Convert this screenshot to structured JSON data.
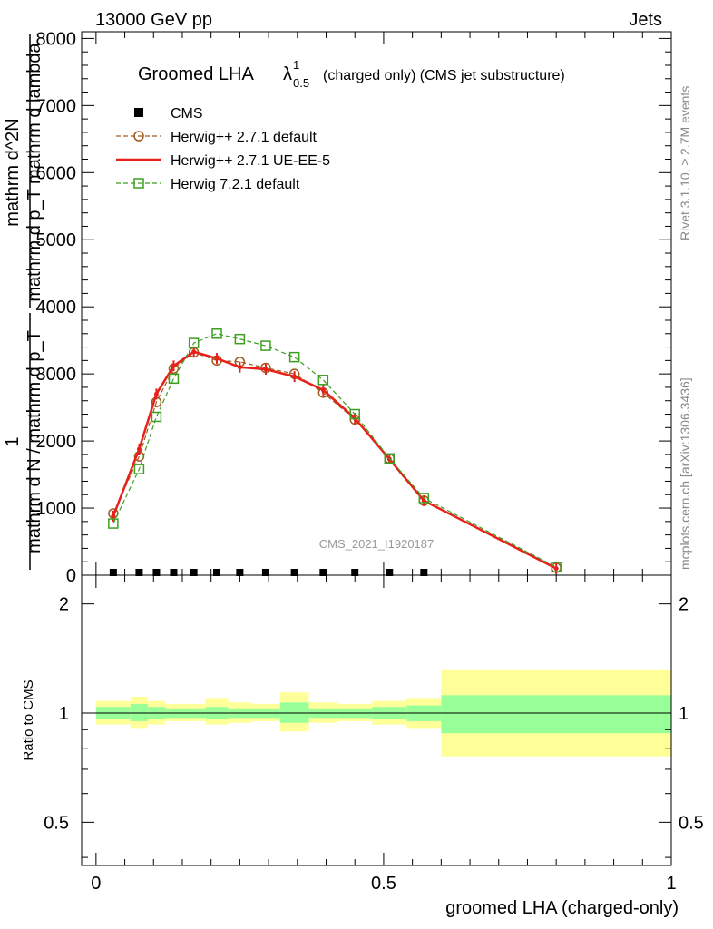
{
  "header": {
    "energy_label": "13000 GeV pp",
    "category_label": "Jets"
  },
  "side_labels": {
    "rivet": "Rivet 3.1.10, ≥ 2.7M events",
    "mcplots": "mcplots.cern.ch [arXiv:1306.3436]"
  },
  "watermark": "CMS_2021_I1920187",
  "chart_data": [
    {
      "type": "line",
      "title_main": "Groomed LHA",
      "title_symbol": "λ",
      "title_sup": "1",
      "title_sub": "0.5",
      "title_rest": "(charged only) (CMS jet substructure)",
      "ylabel_fraction_top": "1",
      "ylabel_fraction_bottom": "mathrm d N / mathrm d p_T",
      "ylabel_rhs_top": "mathrm d^2N",
      "ylabel_rhs_bottom": "mathrm d p_T mathrm d lambda",
      "y_ticks": [
        "0",
        "1000",
        "2000",
        "3000",
        "4000",
        "5000",
        "6000",
        "7000",
        "8000"
      ],
      "ylim": [
        0,
        8100
      ],
      "xlim": [
        -0.025,
        1.0
      ],
      "legend_placement": "top-left",
      "x": [
        0.03,
        0.075,
        0.105,
        0.135,
        0.17,
        0.21,
        0.25,
        0.295,
        0.345,
        0.395,
        0.45,
        0.51,
        0.57,
        0.8
      ],
      "series": [
        {
          "name": "CMS",
          "style": "data",
          "color": "#000000",
          "values": [
            0,
            0,
            0,
            0,
            0,
            0,
            0,
            0,
            0,
            0,
            0,
            0,
            0,
            null
          ]
        },
        {
          "name": "Herwig++ 2.7.1 default",
          "style": "dashed-circle",
          "color": "#a05a1e",
          "values": [
            920,
            1770,
            2580,
            3080,
            3320,
            3200,
            3180,
            3090,
            3000,
            2720,
            2320,
            1740,
            1110,
            110
          ]
        },
        {
          "name": "Herwig++ 2.7.1 UE-EE-5",
          "style": "solid-errorbar",
          "color": "#e8201a",
          "values": [
            880,
            1880,
            2700,
            3120,
            3330,
            3230,
            3100,
            3070,
            2960,
            2760,
            2340,
            1730,
            1110,
            100
          ]
        },
        {
          "name": "Herwig 7.2.1 default",
          "style": "dashed-square",
          "color": "#3e9e22",
          "values": [
            770,
            1580,
            2360,
            2930,
            3460,
            3600,
            3520,
            3420,
            3250,
            2910,
            2400,
            1740,
            1150,
            120
          ]
        }
      ]
    },
    {
      "type": "area",
      "ylabel": "Ratio to CMS",
      "xlabel": "groomed LHA (charged-only)",
      "x_ticks": [
        "0",
        "0.5",
        "1"
      ],
      "y_ticks": [
        "0.5",
        "1",
        "2"
      ],
      "ylim": [
        0.38,
        2.4
      ],
      "y_scale": "log",
      "xlim": [
        -0.025,
        1.0
      ],
      "bins": [
        {
          "lo": 0.0,
          "hi": 0.06,
          "inner": [
            0.96,
            1.04
          ],
          "outer": [
            0.93,
            1.08
          ]
        },
        {
          "lo": 0.06,
          "hi": 0.09,
          "inner": [
            0.95,
            1.06
          ],
          "outer": [
            0.91,
            1.11
          ]
        },
        {
          "lo": 0.09,
          "hi": 0.12,
          "inner": [
            0.96,
            1.04
          ],
          "outer": [
            0.93,
            1.08
          ]
        },
        {
          "lo": 0.12,
          "hi": 0.15,
          "inner": [
            0.97,
            1.03
          ],
          "outer": [
            0.95,
            1.06
          ]
        },
        {
          "lo": 0.15,
          "hi": 0.19,
          "inner": [
            0.97,
            1.03
          ],
          "outer": [
            0.95,
            1.06
          ]
        },
        {
          "lo": 0.19,
          "hi": 0.23,
          "inner": [
            0.96,
            1.04
          ],
          "outer": [
            0.93,
            1.1
          ]
        },
        {
          "lo": 0.23,
          "hi": 0.27,
          "inner": [
            0.97,
            1.03
          ],
          "outer": [
            0.94,
            1.07
          ]
        },
        {
          "lo": 0.27,
          "hi": 0.32,
          "inner": [
            0.97,
            1.03
          ],
          "outer": [
            0.95,
            1.06
          ]
        },
        {
          "lo": 0.32,
          "hi": 0.37,
          "inner": [
            0.94,
            1.07
          ],
          "outer": [
            0.89,
            1.14
          ]
        },
        {
          "lo": 0.37,
          "hi": 0.42,
          "inner": [
            0.97,
            1.03
          ],
          "outer": [
            0.94,
            1.07
          ]
        },
        {
          "lo": 0.42,
          "hi": 0.48,
          "inner": [
            0.97,
            1.03
          ],
          "outer": [
            0.95,
            1.06
          ]
        },
        {
          "lo": 0.48,
          "hi": 0.54,
          "inner": [
            0.96,
            1.04
          ],
          "outer": [
            0.93,
            1.08
          ]
        },
        {
          "lo": 0.54,
          "hi": 0.6,
          "inner": [
            0.95,
            1.05
          ],
          "outer": [
            0.91,
            1.1
          ]
        },
        {
          "lo": 0.6,
          "hi": 1.0,
          "inner": [
            0.88,
            1.12
          ],
          "outer": [
            0.76,
            1.32
          ]
        }
      ],
      "colors": {
        "inner": "#99ff99",
        "outer": "#ffff99",
        "line": "#000000"
      }
    }
  ]
}
